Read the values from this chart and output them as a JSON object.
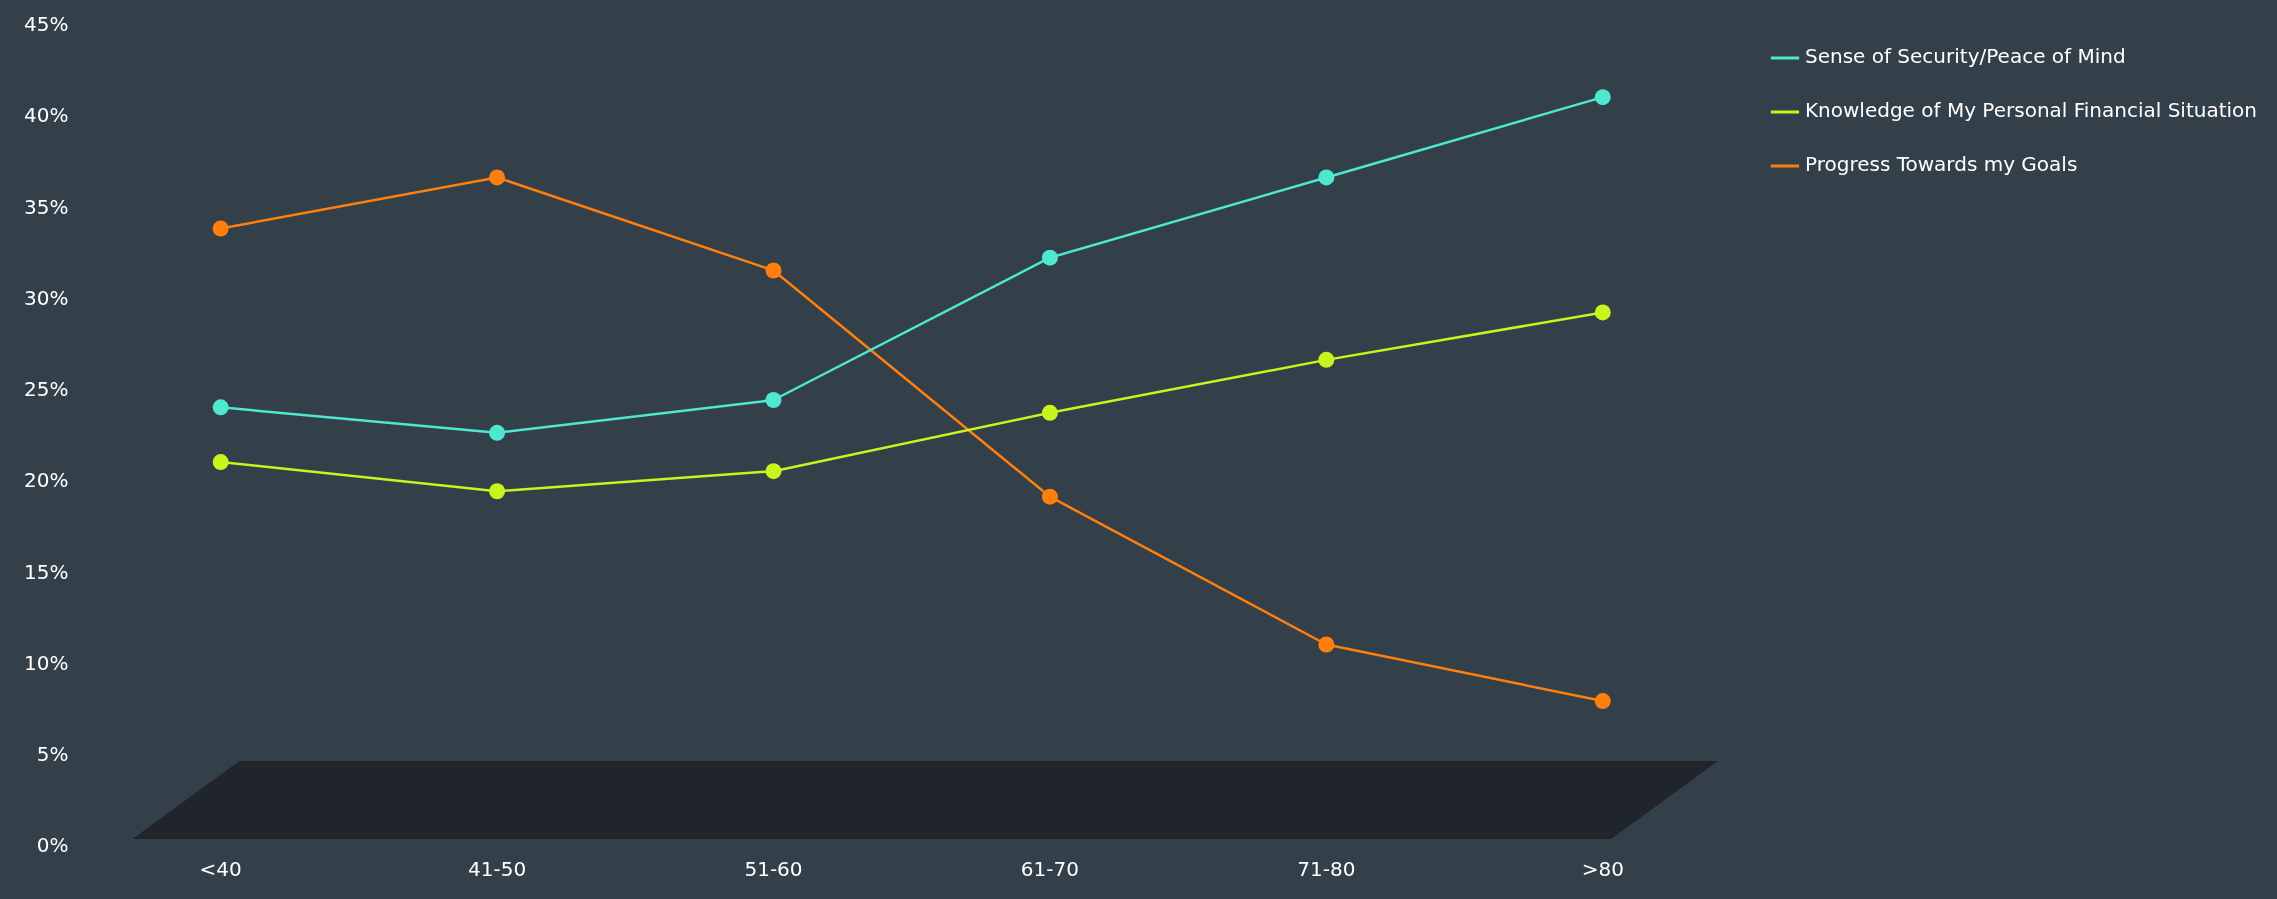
{
  "chart_data": {
    "type": "line",
    "categories": [
      "<40",
      "41-50",
      "51-60",
      "61-70",
      "71-80",
      ">80"
    ],
    "series": [
      {
        "name": "Sense of Security/Peace of Mind",
        "color": "#4ee8d0",
        "values": [
          24.1,
          22.7,
          24.5,
          32.3,
          36.7,
          41.1
        ]
      },
      {
        "name": "Knowledge of My Personal Financial Situation",
        "color": "#c8f51e",
        "values": [
          21.1,
          19.5,
          20.6,
          23.8,
          26.7,
          29.3
        ]
      },
      {
        "name": "Progress Towards my Goals",
        "color": "#ff7f0e",
        "values": [
          33.9,
          36.7,
          31.6,
          19.2,
          11.1,
          8.0
        ]
      }
    ],
    "ylim": [
      0,
      45
    ],
    "yticks": [
      {
        "value": 0,
        "label": "0%"
      },
      {
        "value": 5,
        "label": "5%"
      },
      {
        "value": 10,
        "label": "10%"
      },
      {
        "value": 15,
        "label": "15%"
      },
      {
        "value": 20,
        "label": "20%"
      },
      {
        "value": 25,
        "label": "25%"
      },
      {
        "value": 30,
        "label": "30%"
      },
      {
        "value": 35,
        "label": "35%"
      },
      {
        "value": 40,
        "label": "40%"
      },
      {
        "value": 45,
        "label": "45%"
      }
    ],
    "grid": false,
    "legend": "top right",
    "marker": "circle",
    "line_style": "solid"
  }
}
